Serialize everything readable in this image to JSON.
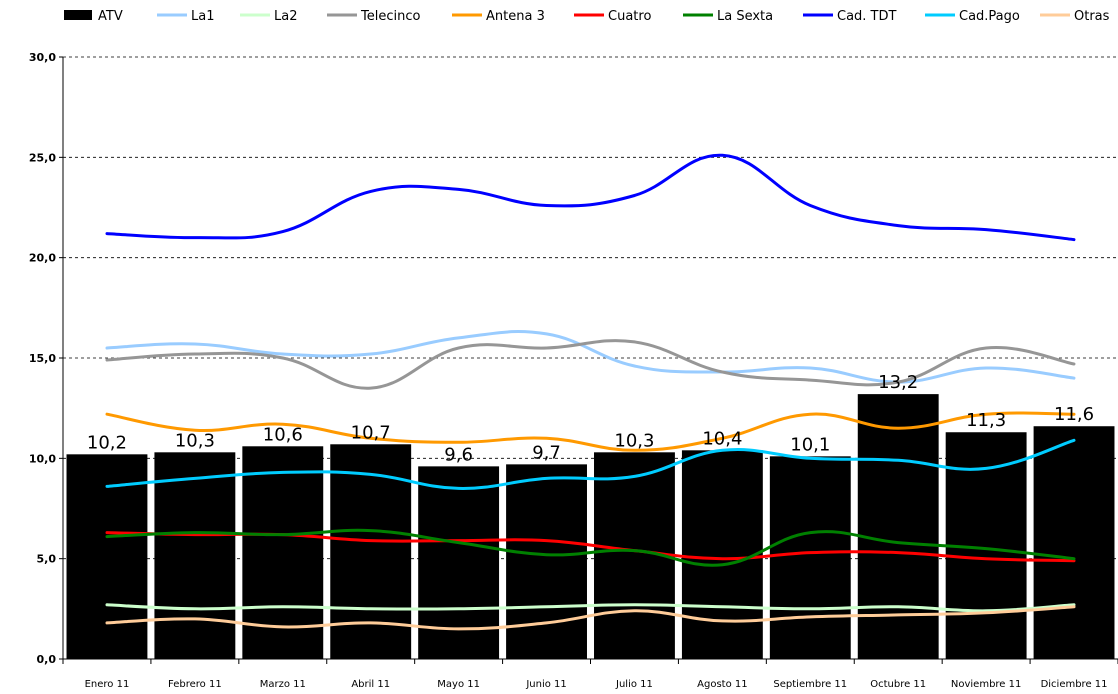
{
  "chart_data": {
    "type": "bar+line",
    "title": "",
    "xlabel": "",
    "ylabel": "",
    "ylim": [
      0,
      30
    ],
    "yticks": [
      "0,0",
      "5,0",
      "10,0",
      "15,0",
      "20,0",
      "25,0",
      "30,0"
    ],
    "ytick_values": [
      0,
      5,
      10,
      15,
      20,
      25,
      30
    ],
    "grid": "horizontal dashed",
    "legend_position": "top",
    "categories": [
      "Enero 11",
      "Febrero 11",
      "Marzo 11",
      "Abril 11",
      "Mayo 11",
      "Junio 11",
      "Julio 11",
      "Agosto 11",
      "Septiembre 11",
      "Octubre 11",
      "Noviembre 11",
      "Diciembre 11"
    ],
    "bars": {
      "name": "ATV",
      "color": "#000000",
      "values": [
        10.2,
        10.3,
        10.6,
        10.7,
        9.6,
        9.7,
        10.3,
        10.4,
        10.1,
        13.2,
        11.3,
        11.6
      ],
      "labels": [
        "10,2",
        "10,3",
        "10,6",
        "10,7",
        "9,6",
        "9,7",
        "10,3",
        "10,4",
        "10,1",
        "13,2",
        "11,3",
        "11,6"
      ]
    },
    "series": [
      {
        "name": "La1",
        "color": "#99ccff",
        "values": [
          15.5,
          15.7,
          15.2,
          15.2,
          16.0,
          16.2,
          14.6,
          14.3,
          14.5,
          13.8,
          14.5,
          14.0
        ]
      },
      {
        "name": "La2",
        "color": "#ccffcc",
        "values": [
          2.7,
          2.5,
          2.6,
          2.5,
          2.5,
          2.6,
          2.7,
          2.6,
          2.5,
          2.6,
          2.4,
          2.7
        ]
      },
      {
        "name": "Telecinco",
        "color": "#969696",
        "values": [
          14.9,
          15.2,
          15.0,
          13.5,
          15.5,
          15.5,
          15.8,
          14.3,
          13.9,
          13.8,
          15.5,
          14.7
        ]
      },
      {
        "name": "Antena 3",
        "color": "#ff9900",
        "values": [
          12.2,
          11.4,
          11.7,
          11.0,
          10.8,
          11.0,
          10.4,
          11.0,
          12.2,
          11.5,
          12.2,
          12.2
        ]
      },
      {
        "name": "Cuatro",
        "color": "#ff0000",
        "values": [
          6.3,
          6.2,
          6.2,
          5.9,
          5.9,
          5.9,
          5.4,
          5.0,
          5.3,
          5.3,
          5.0,
          4.9
        ]
      },
      {
        "name": "La Sexta",
        "color": "#008000",
        "values": [
          6.1,
          6.3,
          6.2,
          6.4,
          5.8,
          5.2,
          5.4,
          4.7,
          6.3,
          5.8,
          5.5,
          5.0
        ]
      },
      {
        "name": "Cad. TDT",
        "color": "#0000ff",
        "values": [
          21.2,
          21.0,
          21.3,
          23.3,
          23.4,
          22.6,
          23.1,
          25.1,
          22.6,
          21.6,
          21.4,
          20.9
        ]
      },
      {
        "name": "Cad.Pago",
        "color": "#00ccff",
        "values": [
          8.6,
          9.0,
          9.3,
          9.2,
          8.5,
          9.0,
          9.1,
          10.4,
          10.0,
          9.9,
          9.5,
          10.9
        ]
      },
      {
        "name": "Otras",
        "color": "#ffcc99",
        "values": [
          1.8,
          2.0,
          1.6,
          1.8,
          1.5,
          1.8,
          2.4,
          1.9,
          2.1,
          2.2,
          2.3,
          2.6
        ]
      }
    ]
  }
}
